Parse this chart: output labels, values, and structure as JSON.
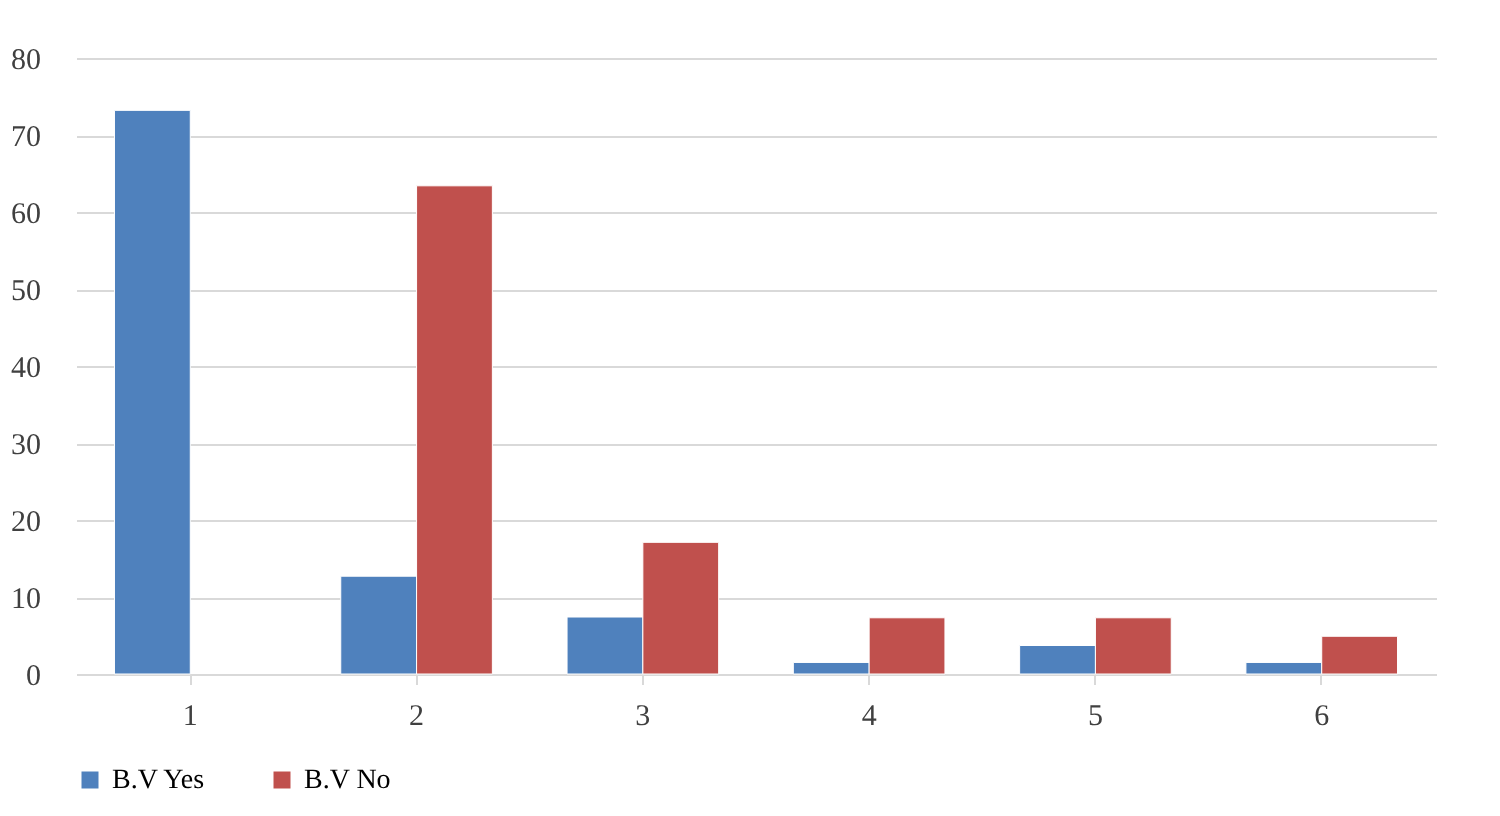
{
  "chart_data": {
    "type": "bar",
    "categories": [
      "1",
      "2",
      "3",
      "4",
      "5",
      "6"
    ],
    "series": [
      {
        "name": "B.V Yes",
        "color": "#4f81bd",
        "values": [
          73.2,
          12.7,
          7.4,
          1.5,
          3.7,
          1.5
        ]
      },
      {
        "name": "B.V No",
        "color": "#c0504d",
        "values": [
          null,
          63.4,
          17.1,
          7.3,
          7.3,
          4.9
        ]
      }
    ],
    "ylim": [
      0,
      80
    ],
    "yticks": [
      0,
      10,
      20,
      30,
      40,
      50,
      60,
      70,
      80
    ],
    "grid": "y",
    "legend": "bottom"
  }
}
